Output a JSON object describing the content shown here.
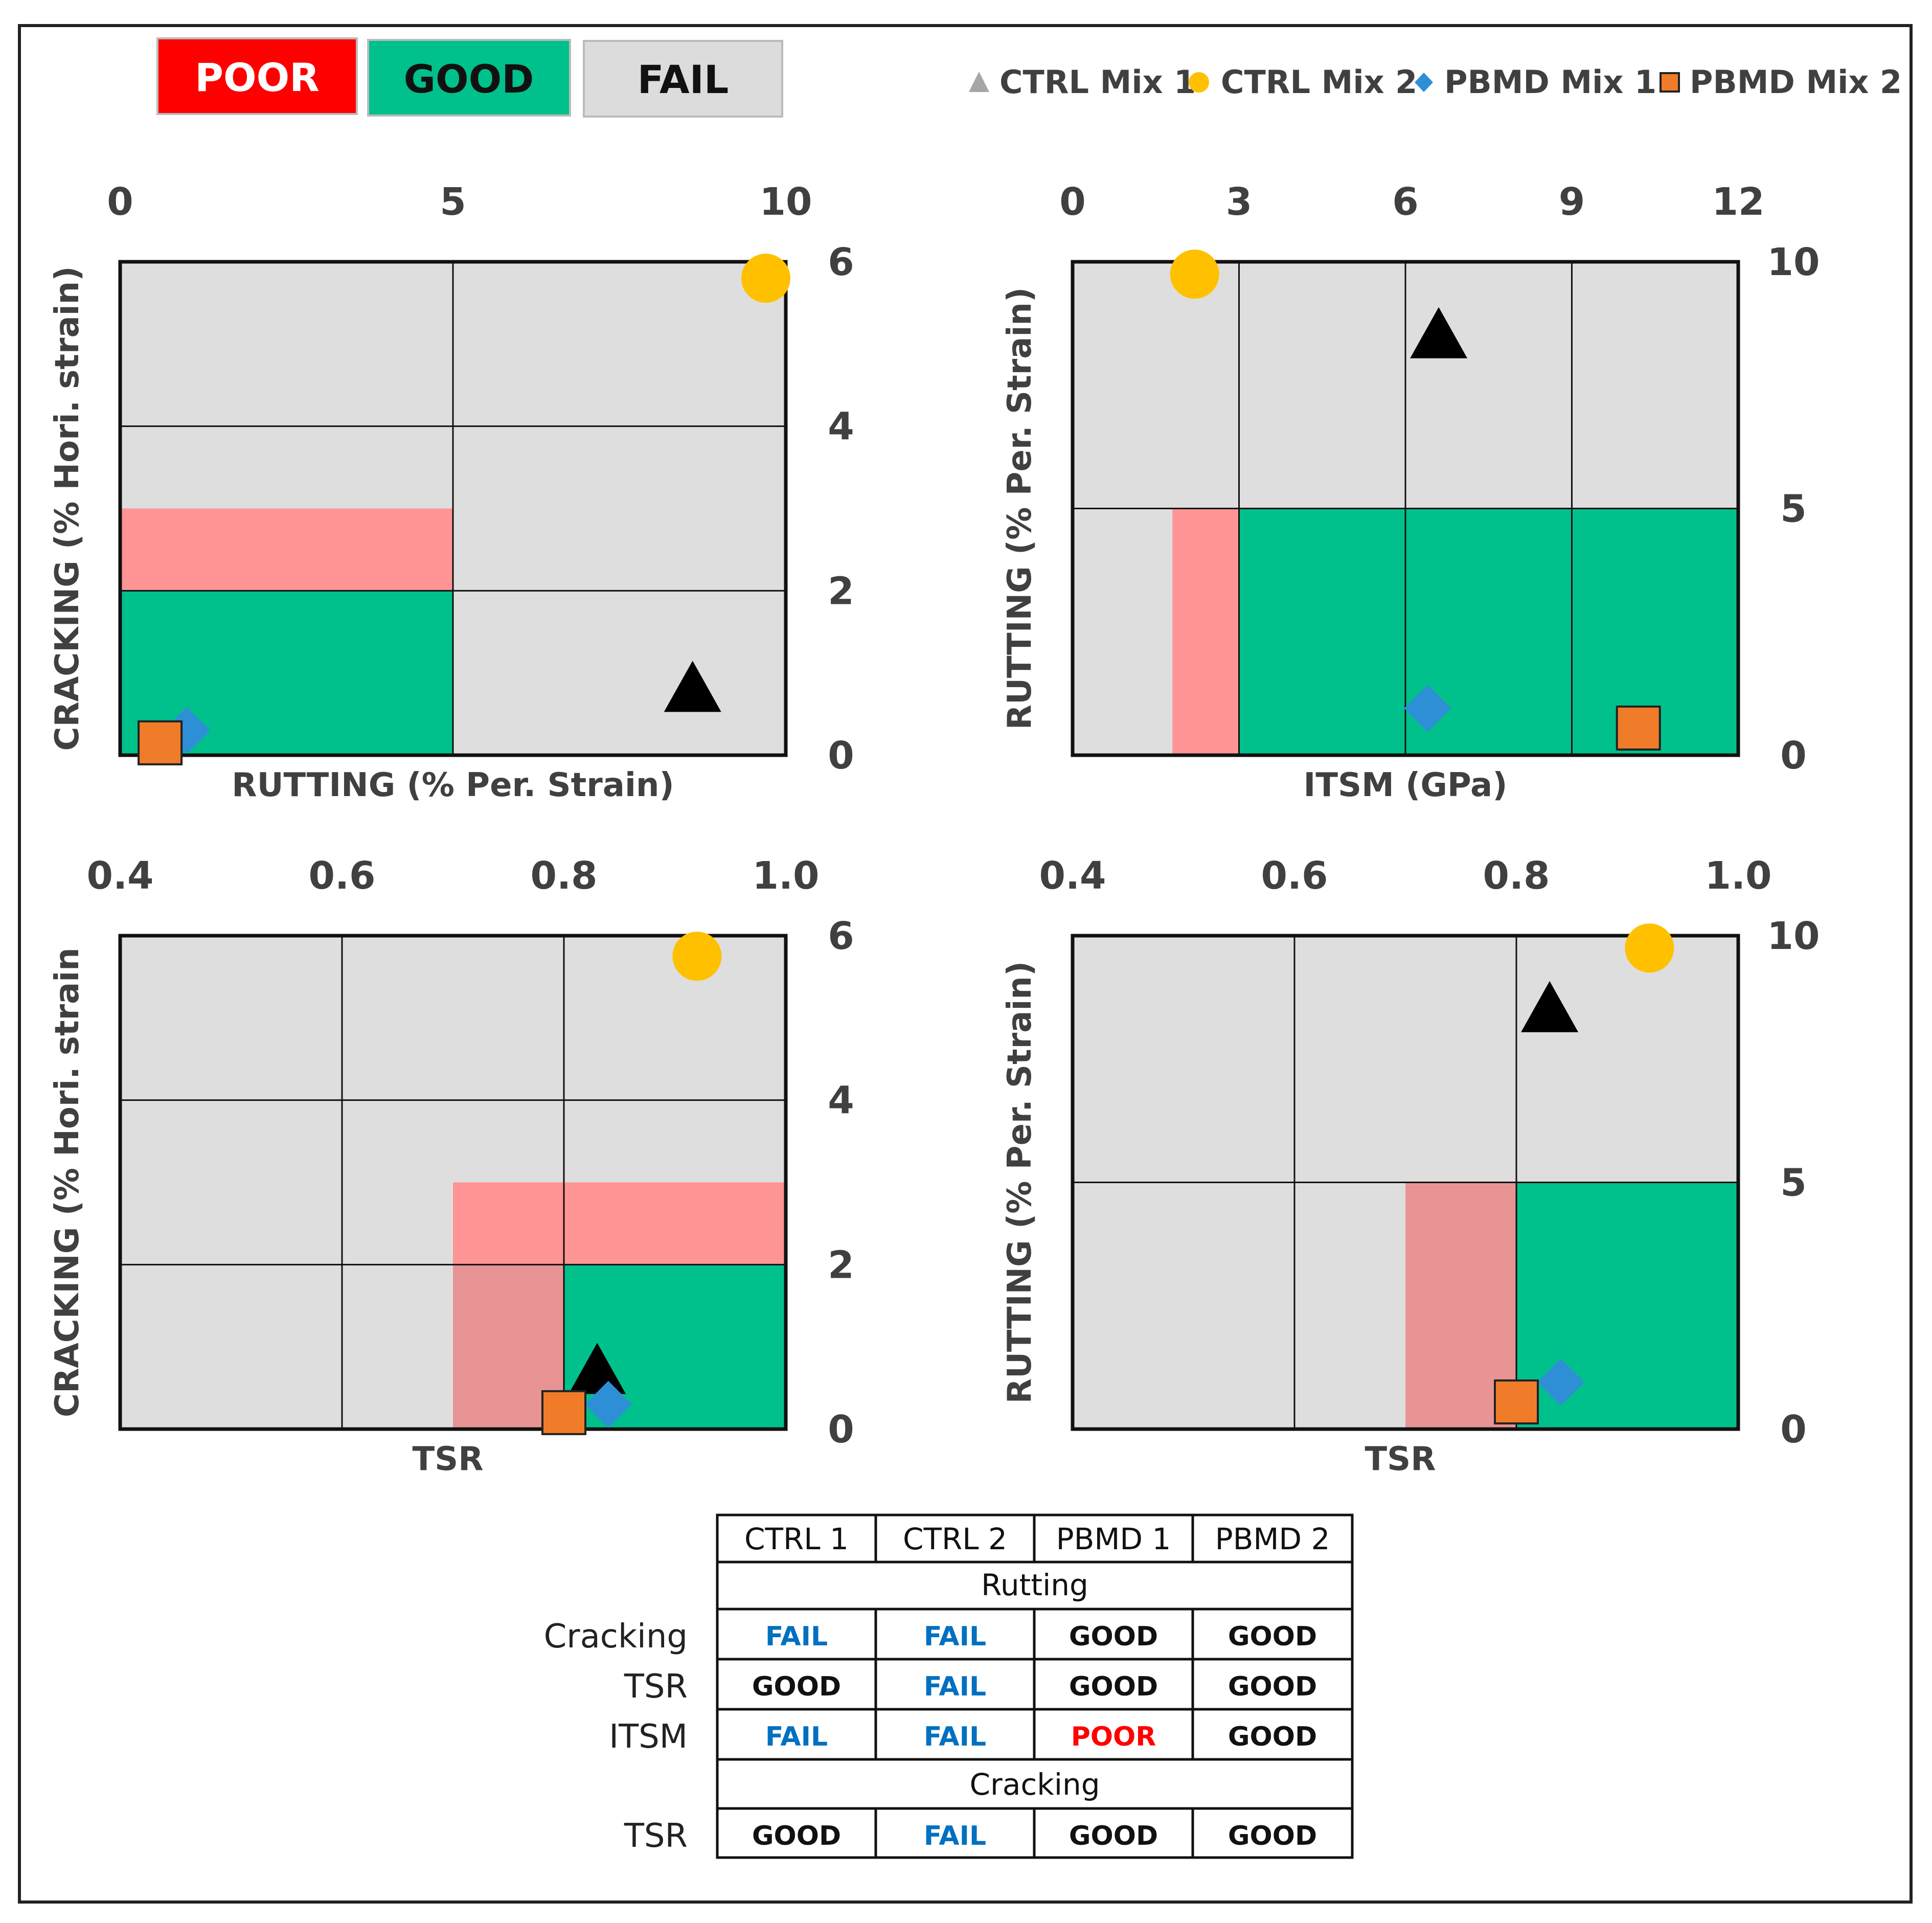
{
  "key_boxes": [
    {
      "label": "POOR",
      "fill": "#ff0000",
      "text_color": "#ffffff"
    },
    {
      "label": "GOOD",
      "fill": "#00c08b",
      "text_color": "#111111"
    },
    {
      "label": "FAIL",
      "fill": "#dcdcdc",
      "text_color": "#111111"
    }
  ],
  "legend": [
    {
      "label": "CTRL Mix 1",
      "marker": "triangle",
      "color": "#000000",
      "legend_color": "#a6a6a6"
    },
    {
      "label": "CTRL Mix 2",
      "marker": "circle",
      "color": "#ffc000"
    },
    {
      "label": "PBMD Mix 1",
      "marker": "diamond",
      "color": "#2e8fd6"
    },
    {
      "label": "PBMD Mix 2",
      "marker": "square",
      "color": "#f07c2a",
      "stroke": "#222222"
    }
  ],
  "colors": {
    "fail": "#dedede",
    "good": "#00c08b",
    "poor": "#ff9494",
    "poor_overlap": "#e89494",
    "fail_text": "#0070c0",
    "poor_text": "#ff0000"
  },
  "chart_data": [
    {
      "type": "scatter",
      "id": "tl",
      "xlabel": "RUTTING (% Per. Strain)",
      "ylabel": "CRACKING (% Hori. strain)",
      "xlim": [
        0,
        10
      ],
      "ylim": [
        0,
        6
      ],
      "xticks": [
        "0",
        "5",
        "10"
      ],
      "yticks": [
        "0",
        "2",
        "4",
        "6"
      ],
      "x_grid": [
        5
      ],
      "y_grid": [
        2,
        4
      ],
      "zones": [
        {
          "type": "good",
          "x0": 0,
          "x1": 5,
          "y0": 0,
          "y1": 2
        },
        {
          "type": "poor",
          "x0": 0,
          "x1": 5,
          "y0": 2,
          "y1": 3
        }
      ],
      "points": [
        {
          "series": "CTRL Mix 1",
          "x": 8.6,
          "y": 0.8
        },
        {
          "series": "CTRL Mix 2",
          "x": 9.7,
          "y": 5.8
        },
        {
          "series": "PBMD Mix 1",
          "x": 1.0,
          "y": 0.3
        },
        {
          "series": "PBMD Mix 2",
          "x": 0.6,
          "y": 0.15
        }
      ]
    },
    {
      "type": "scatter",
      "id": "tr",
      "xlabel": "ITSM (GPa)",
      "ylabel": "RUTTING (% Per. Strain)",
      "xlim": [
        0,
        12
      ],
      "ylim": [
        0,
        10
      ],
      "xticks": [
        "0",
        "3",
        "6",
        "9",
        "12"
      ],
      "yticks": [
        "0",
        "5",
        "10"
      ],
      "x_grid": [
        3,
        6,
        9
      ],
      "y_grid": [
        5
      ],
      "zones": [
        {
          "type": "poor",
          "x0": 1.8,
          "x1": 3,
          "y0": 0,
          "y1": 5
        },
        {
          "type": "good",
          "x0": 3,
          "x1": 12,
          "y0": 0,
          "y1": 5
        }
      ],
      "points": [
        {
          "series": "CTRL Mix 1",
          "x": 6.6,
          "y": 8.5
        },
        {
          "series": "CTRL Mix 2",
          "x": 2.2,
          "y": 9.75
        },
        {
          "series": "PBMD Mix 1",
          "x": 6.4,
          "y": 0.95
        },
        {
          "series": "PBMD Mix 2",
          "x": 10.2,
          "y": 0.55
        }
      ]
    },
    {
      "type": "scatter",
      "id": "bl",
      "xlabel": "TSR",
      "ylabel": "CRACKING (% Hori. strain",
      "xlim": [
        0.4,
        1.0
      ],
      "ylim": [
        0,
        6
      ],
      "xticks": [
        "0.4",
        "0.6",
        "0.8",
        "1.0"
      ],
      "yticks": [
        "0",
        "2",
        "4",
        "6"
      ],
      "x_grid": [
        0.6,
        0.8
      ],
      "y_grid": [
        2,
        4
      ],
      "zones": [
        {
          "type": "poor",
          "x0": 0.7,
          "x1": 1.0,
          "y0": 2,
          "y1": 3
        },
        {
          "type": "poor_overlap",
          "x0": 0.7,
          "x1": 0.8,
          "y0": 0,
          "y1": 2
        },
        {
          "type": "good",
          "x0": 0.8,
          "x1": 1.0,
          "y0": 0,
          "y1": 2
        }
      ],
      "points": [
        {
          "series": "CTRL Mix 1",
          "x": 0.83,
          "y": 0.7
        },
        {
          "series": "CTRL Mix 2",
          "x": 0.92,
          "y": 5.75
        },
        {
          "series": "PBMD Mix 1",
          "x": 0.84,
          "y": 0.3
        },
        {
          "series": "PBMD Mix 2",
          "x": 0.8,
          "y": 0.2
        }
      ]
    },
    {
      "type": "scatter",
      "id": "br",
      "xlabel": "TSR",
      "ylabel": "RUTTING (% Per. Strain)",
      "xlim": [
        0.4,
        1.0
      ],
      "ylim": [
        0,
        10
      ],
      "xticks": [
        "0.4",
        "0.6",
        "0.8",
        "1.0"
      ],
      "yticks": [
        "0",
        "5",
        "10"
      ],
      "x_grid": [
        0.6,
        0.8
      ],
      "y_grid": [
        5
      ],
      "zones": [
        {
          "type": "poor_overlap",
          "x0": 0.7,
          "x1": 0.8,
          "y0": 0,
          "y1": 5
        },
        {
          "type": "good",
          "x0": 0.8,
          "x1": 1.0,
          "y0": 0,
          "y1": 5
        }
      ],
      "points": [
        {
          "series": "CTRL Mix 1",
          "x": 0.83,
          "y": 8.5
        },
        {
          "series": "CTRL Mix 2",
          "x": 0.92,
          "y": 9.75
        },
        {
          "series": "PBMD Mix 1",
          "x": 0.84,
          "y": 0.95
        },
        {
          "series": "PBMD Mix 2",
          "x": 0.8,
          "y": 0.55
        }
      ]
    }
  ],
  "table": {
    "columns": [
      "CTRL 1",
      "CTRL 2",
      "PBMD 1",
      "PBMD 2"
    ],
    "sections": [
      {
        "header": "Rutting",
        "rows": [
          {
            "label": "Cracking",
            "values": [
              "FAIL",
              "FAIL",
              "GOOD",
              "GOOD"
            ]
          },
          {
            "label": "TSR",
            "values": [
              "GOOD",
              "FAIL",
              "GOOD",
              "GOOD"
            ]
          },
          {
            "label": "ITSM",
            "values": [
              "FAIL",
              "FAIL",
              "POOR",
              "GOOD"
            ]
          }
        ]
      },
      {
        "header": "Cracking",
        "rows": [
          {
            "label": "TSR",
            "values": [
              "GOOD",
              "FAIL",
              "GOOD",
              "GOOD"
            ]
          }
        ]
      }
    ]
  }
}
